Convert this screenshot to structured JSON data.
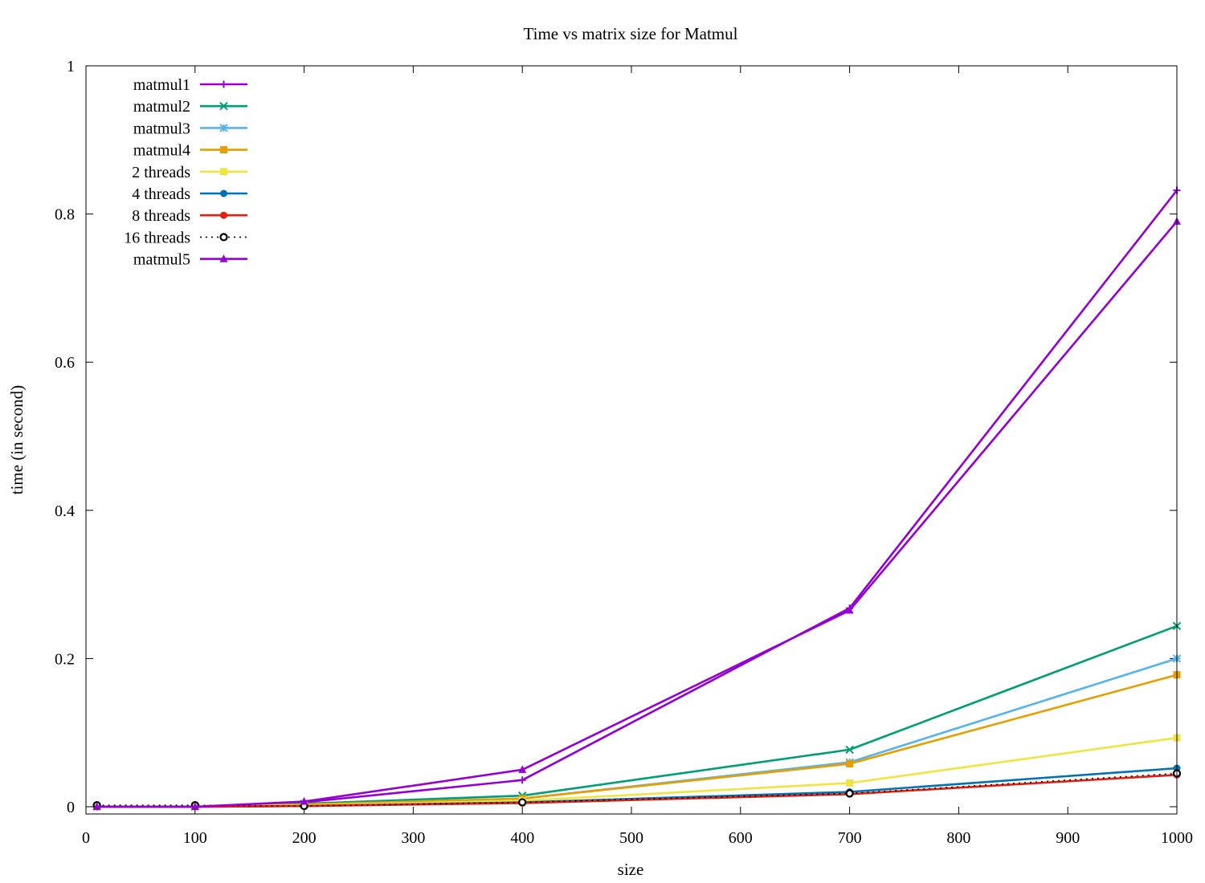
{
  "chart_data": {
    "type": "line",
    "title": "Time vs matrix size for Matmul",
    "xlabel": "size",
    "ylabel": "time (in second)",
    "xlim": [
      0,
      1000
    ],
    "ylim": [
      0,
      1
    ],
    "xticks": [
      "0",
      "100",
      "200",
      "300",
      "400",
      "500",
      "600",
      "700",
      "800",
      "900",
      "1000"
    ],
    "yticks": [
      "0",
      "0.2",
      "0.4",
      "0.6",
      "0.8",
      "1"
    ],
    "grid": false,
    "legend_position": "top-left",
    "x": [
      10,
      100,
      200,
      400,
      700,
      1000
    ],
    "series": [
      {
        "name": "matmul1",
        "color": "#9400d3",
        "marker": "plus",
        "dash": false,
        "values": [
          0.0,
          0.0,
          0.006,
          0.036,
          0.268,
          0.832
        ]
      },
      {
        "name": "matmul2",
        "color": "#009e73",
        "marker": "cross",
        "dash": false,
        "values": [
          0.0,
          0.0,
          0.004,
          0.015,
          0.077,
          0.244
        ]
      },
      {
        "name": "matmul3",
        "color": "#56b4e9",
        "marker": "asterisk",
        "dash": false,
        "values": [
          0.0,
          0.0,
          0.003,
          0.011,
          0.06,
          0.2
        ]
      },
      {
        "name": "matmul4",
        "color": "#e69f00",
        "marker": "square",
        "dash": false,
        "values": [
          0.0,
          0.0,
          0.003,
          0.011,
          0.058,
          0.178
        ]
      },
      {
        "name": "2 threads",
        "color": "#f0e442",
        "marker": "square",
        "dash": false,
        "values": [
          0.0,
          0.0,
          0.002,
          0.008,
          0.032,
          0.093
        ]
      },
      {
        "name": "4 threads",
        "color": "#0072b2",
        "marker": "circle",
        "dash": false,
        "values": [
          0.0,
          0.0,
          0.001,
          0.006,
          0.02,
          0.052
        ]
      },
      {
        "name": "8 threads",
        "color": "#e51e10",
        "marker": "circle",
        "dash": false,
        "values": [
          0.0,
          0.0,
          0.001,
          0.005,
          0.017,
          0.043
        ]
      },
      {
        "name": "16 threads",
        "color": "#000000",
        "marker": "open-circle",
        "dash": true,
        "values": [
          0.002,
          0.002,
          0.001,
          0.006,
          0.018,
          0.045
        ]
      },
      {
        "name": "matmul5",
        "color": "#9400d3",
        "marker": "triangle",
        "dash": false,
        "values": [
          0.0,
          0.0,
          0.007,
          0.05,
          0.265,
          0.79
        ]
      }
    ]
  }
}
